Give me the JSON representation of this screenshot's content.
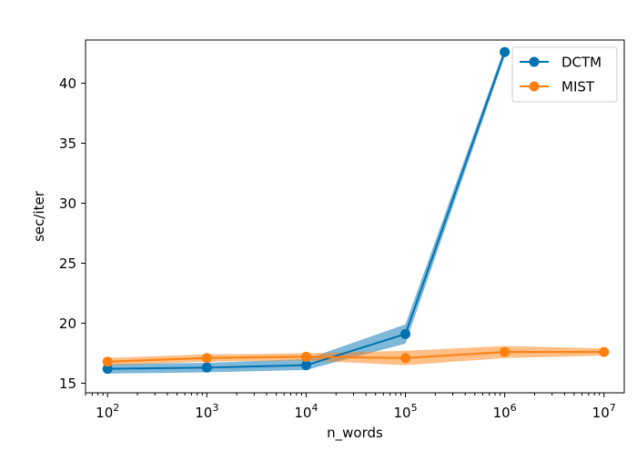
{
  "chart_data": {
    "type": "line",
    "xlabel": "n_words",
    "ylabel": "sec/iter",
    "x_scale": "log",
    "x_tick_labels": [
      {
        "base": "10",
        "exp": "2"
      },
      {
        "base": "10",
        "exp": "3"
      },
      {
        "base": "10",
        "exp": "4"
      },
      {
        "base": "10",
        "exp": "5"
      },
      {
        "base": "10",
        "exp": "6"
      },
      {
        "base": "10",
        "exp": "7"
      }
    ],
    "y_ticks": [
      15,
      20,
      25,
      30,
      35,
      40
    ],
    "xlim": [
      60,
      16000000
    ],
    "ylim": [
      14.2,
      43.6
    ],
    "grid": false,
    "legend_position": "top-right",
    "series": [
      {
        "name": "DCTM",
        "color": "#0072b2",
        "x": [
          100,
          1000,
          10000,
          100000,
          1000000
        ],
        "values": [
          16.2,
          16.3,
          16.5,
          19.1,
          42.6
        ],
        "lower": [
          15.8,
          15.9,
          16.1,
          18.3,
          42.2
        ],
        "upper": [
          16.6,
          16.7,
          17.0,
          19.9,
          43.0
        ]
      },
      {
        "name": "MIST",
        "color": "#ff7f0e",
        "x": [
          100,
          1000,
          10000,
          100000,
          1000000,
          10000000
        ],
        "values": [
          16.8,
          17.1,
          17.2,
          17.1,
          17.6,
          17.6
        ],
        "lower": [
          16.5,
          16.8,
          16.9,
          16.5,
          17.1,
          17.3
        ],
        "upper": [
          17.1,
          17.4,
          17.5,
          17.7,
          18.1,
          17.9
        ]
      }
    ]
  }
}
